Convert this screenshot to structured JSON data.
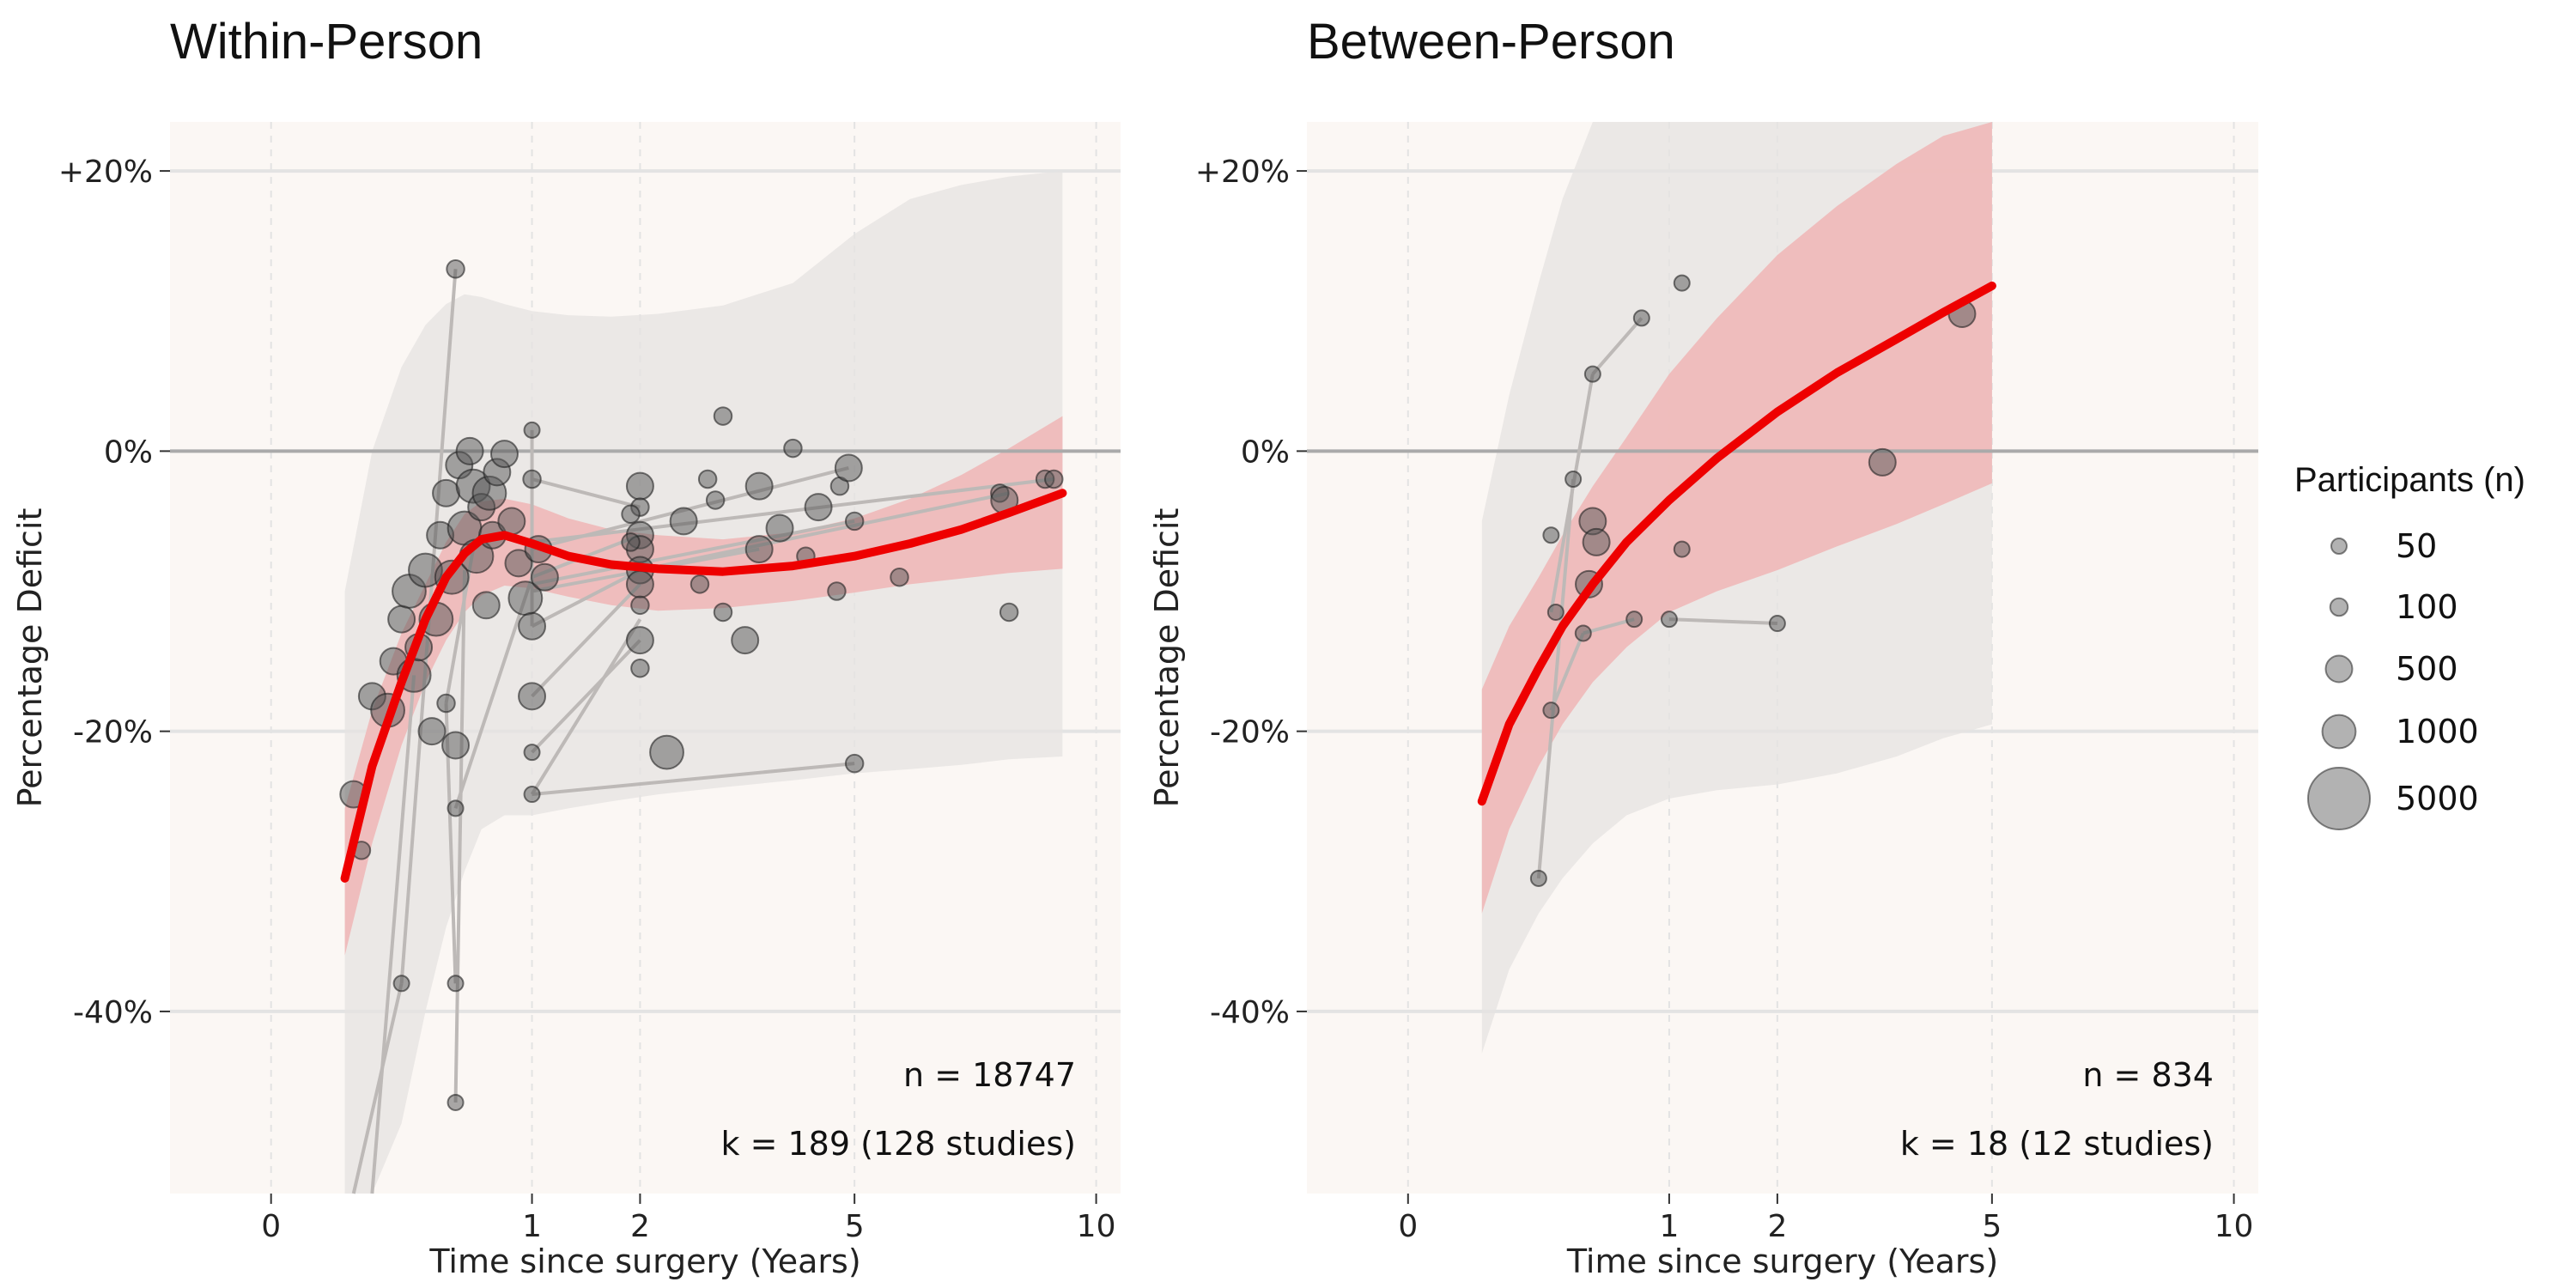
{
  "colors": {
    "panel_bg": "#fbf7f4",
    "outer_band": "#e6e3e1",
    "inner_band": "#f0b8b8",
    "curve": "#ee0000",
    "point_fill": "#555555",
    "link_line": "#bdb9b7",
    "zero_line": "#aaaaaa",
    "grid": "#e3e3e3"
  },
  "legend": {
    "title": "Participants (n)",
    "sizes": [
      50,
      100,
      500,
      1000,
      5000
    ],
    "labels": [
      "50",
      "100",
      "500",
      "1000",
      "5000"
    ]
  },
  "chart_data": [
    {
      "type": "scatter",
      "title": "Within-Person",
      "xlabel": "Time since surgery (Years)",
      "ylabel": "Percentage Deficit",
      "x_transform": "sqrt",
      "xlim": [
        -0.15,
        10.6
      ],
      "ylim": [
        -53,
        23.5
      ],
      "x_ticks": [
        0,
        1,
        2,
        5,
        10
      ],
      "y_ticks": [
        20,
        0,
        -20,
        -40
      ],
      "y_tick_labels": [
        "+20%",
        "0%",
        "-20%",
        "-40%"
      ],
      "annotations": [
        "n = 18747",
        "k = 189 (128 studies)"
      ],
      "fit": {
        "x": [
          0.08,
          0.15,
          0.25,
          0.35,
          0.45,
          0.55,
          0.65,
          0.8,
          1.0,
          1.3,
          1.7,
          2.2,
          3.0,
          4.0,
          5.0,
          6.0,
          7.0,
          8.0,
          9.2
        ],
        "y": [
          -30.5,
          -22.5,
          -16.5,
          -12.0,
          -9.0,
          -7.3,
          -6.3,
          -6.0,
          -6.6,
          -7.5,
          -8.1,
          -8.4,
          -8.6,
          -8.2,
          -7.5,
          -6.6,
          -5.6,
          -4.4,
          -3.0
        ],
        "ci_lower": [
          -36.0,
          -28.0,
          -21.0,
          -16.5,
          -13.5,
          -11.5,
          -10.3,
          -9.6,
          -9.8,
          -10.4,
          -11.0,
          -11.4,
          -11.2,
          -10.7,
          -10.1,
          -9.5,
          -9.1,
          -8.7,
          -8.4
        ],
        "ci_upper": [
          -25.5,
          -18.5,
          -13.0,
          -9.5,
          -6.5,
          -4.5,
          -3.6,
          -3.4,
          -3.8,
          -4.8,
          -5.6,
          -6.0,
          -6.3,
          -5.8,
          -4.8,
          -3.4,
          -1.7,
          0.2,
          2.5
        ],
        "pi_lower": [
          -60,
          -55,
          -48,
          -40,
          -34,
          -30,
          -27,
          -26,
          -26,
          -25.5,
          -25,
          -24.5,
          -24,
          -23.5,
          -23,
          -22.7,
          -22.4,
          -22.0,
          -21.8
        ],
        "pi_upper": [
          -10,
          0,
          6,
          9,
          10.5,
          11.2,
          11.0,
          10.5,
          10.0,
          9.7,
          9.6,
          9.8,
          10.4,
          12.0,
          15.5,
          18.0,
          19.0,
          19.6,
          20.0
        ]
      },
      "points": [
        {
          "x": 0.5,
          "y": 13,
          "n": 100
        },
        {
          "x": 0.15,
          "y": -17.5,
          "n": 500
        },
        {
          "x": 0.2,
          "y": -18.5,
          "n": 1000
        },
        {
          "x": 0.22,
          "y": -15,
          "n": 500
        },
        {
          "x": 0.25,
          "y": -12,
          "n": 500
        },
        {
          "x": 0.28,
          "y": -10,
          "n": 1000
        },
        {
          "x": 0.3,
          "y": -16,
          "n": 1000
        },
        {
          "x": 0.32,
          "y": -14,
          "n": 500
        },
        {
          "x": 0.35,
          "y": -8.5,
          "n": 1000
        },
        {
          "x": 0.38,
          "y": -20,
          "n": 500
        },
        {
          "x": 0.4,
          "y": -12,
          "n": 1000
        },
        {
          "x": 0.42,
          "y": -6,
          "n": 500
        },
        {
          "x": 0.45,
          "y": -3,
          "n": 500
        },
        {
          "x": 0.48,
          "y": -9,
          "n": 1000
        },
        {
          "x": 0.5,
          "y": -21,
          "n": 500
        },
        {
          "x": 0.52,
          "y": -1,
          "n": 500
        },
        {
          "x": 0.55,
          "y": -5.5,
          "n": 1000
        },
        {
          "x": 0.58,
          "y": 0,
          "n": 500
        },
        {
          "x": 0.6,
          "y": -2.5,
          "n": 1000
        },
        {
          "x": 0.62,
          "y": -7.5,
          "n": 1000
        },
        {
          "x": 0.65,
          "y": -4,
          "n": 500
        },
        {
          "x": 0.68,
          "y": -11,
          "n": 500
        },
        {
          "x": 0.7,
          "y": -3,
          "n": 1000
        },
        {
          "x": 0.72,
          "y": -6,
          "n": 500
        },
        {
          "x": 0.75,
          "y": -1.5,
          "n": 500
        },
        {
          "x": 0.8,
          "y": -0.2,
          "n": 500
        },
        {
          "x": 0.85,
          "y": -5,
          "n": 500
        },
        {
          "x": 0.9,
          "y": -8,
          "n": 500
        },
        {
          "x": 0.95,
          "y": -10.5,
          "n": 1000
        },
        {
          "x": 1.0,
          "y": -12.5,
          "n": 500
        },
        {
          "x": 1.0,
          "y": -2,
          "n": 100
        },
        {
          "x": 1.0,
          "y": 1.5,
          "n": 50
        },
        {
          "x": 1.0,
          "y": -17.5,
          "n": 500
        },
        {
          "x": 1.0,
          "y": -21.5,
          "n": 50
        },
        {
          "x": 1.0,
          "y": -24.5,
          "n": 50
        },
        {
          "x": 1.05,
          "y": -7,
          "n": 500
        },
        {
          "x": 1.1,
          "y": -9,
          "n": 500
        },
        {
          "x": 0.1,
          "y": -24.5,
          "n": 500
        },
        {
          "x": 0.12,
          "y": -28.5,
          "n": 100
        },
        {
          "x": 0.25,
          "y": -38,
          "n": 50
        },
        {
          "x": 0.5,
          "y": -38,
          "n": 50
        },
        {
          "x": 0.5,
          "y": -46.5,
          "n": 50
        },
        {
          "x": 0.5,
          "y": -25.5,
          "n": 50
        },
        {
          "x": 0.45,
          "y": -18,
          "n": 100
        },
        {
          "x": 2.0,
          "y": -2.5,
          "n": 500
        },
        {
          "x": 2.0,
          "y": -4,
          "n": 100
        },
        {
          "x": 2.0,
          "y": -6,
          "n": 500
        },
        {
          "x": 2.0,
          "y": -7,
          "n": 500
        },
        {
          "x": 2.0,
          "y": -8.5,
          "n": 500
        },
        {
          "x": 2.0,
          "y": -9.5,
          "n": 500
        },
        {
          "x": 2.0,
          "y": -11,
          "n": 100
        },
        {
          "x": 2.0,
          "y": -13.5,
          "n": 500
        },
        {
          "x": 2.0,
          "y": -15.5,
          "n": 100
        },
        {
          "x": 1.9,
          "y": -4.5,
          "n": 100
        },
        {
          "x": 1.9,
          "y": -6.5,
          "n": 100
        },
        {
          "x": 2.3,
          "y": -21.5,
          "n": 1000
        },
        {
          "x": 2.5,
          "y": -5,
          "n": 500
        },
        {
          "x": 2.7,
          "y": -9.5,
          "n": 100
        },
        {
          "x": 2.8,
          "y": -2,
          "n": 100
        },
        {
          "x": 2.9,
          "y": -3.5,
          "n": 100
        },
        {
          "x": 3.0,
          "y": 2.5,
          "n": 100
        },
        {
          "x": 3.0,
          "y": -11.5,
          "n": 100
        },
        {
          "x": 3.3,
          "y": -13.5,
          "n": 500
        },
        {
          "x": 3.5,
          "y": -2.5,
          "n": 500
        },
        {
          "x": 3.5,
          "y": -7,
          "n": 500
        },
        {
          "x": 3.8,
          "y": -5.5,
          "n": 500
        },
        {
          "x": 4.0,
          "y": 0.2,
          "n": 100
        },
        {
          "x": 4.2,
          "y": -7.5,
          "n": 100
        },
        {
          "x": 4.4,
          "y": -4,
          "n": 500
        },
        {
          "x": 4.7,
          "y": -10,
          "n": 100
        },
        {
          "x": 4.75,
          "y": -2.5,
          "n": 100
        },
        {
          "x": 4.9,
          "y": -1.2,
          "n": 500
        },
        {
          "x": 5.0,
          "y": -22.3,
          "n": 100
        },
        {
          "x": 5.0,
          "y": -5,
          "n": 100
        },
        {
          "x": 5.8,
          "y": -9,
          "n": 100
        },
        {
          "x": 7.8,
          "y": -3,
          "n": 100
        },
        {
          "x": 7.9,
          "y": -3.5,
          "n": 500
        },
        {
          "x": 8.0,
          "y": -11.5,
          "n": 100
        },
        {
          "x": 8.8,
          "y": -2,
          "n": 100
        },
        {
          "x": 9.0,
          "y": -2,
          "n": 100
        }
      ],
      "links": [
        [
          [
            0.25,
            -38
          ],
          [
            0.5,
            13
          ]
        ],
        [
          [
            0.5,
            -46.5
          ],
          [
            0.55,
            -8.5
          ]
        ],
        [
          [
            0.25,
            -38
          ],
          [
            0.1,
            -60
          ]
        ],
        [
          [
            0.5,
            -25.5
          ],
          [
            1.0,
            -9
          ]
        ],
        [
          [
            0.45,
            -18
          ],
          [
            0.6,
            -7
          ]
        ],
        [
          [
            1.0,
            -24.5
          ],
          [
            2.0,
            -12
          ]
        ],
        [
          [
            1.0,
            -21.5
          ],
          [
            2.0,
            -13.5
          ]
        ],
        [
          [
            1.0,
            -24.5
          ],
          [
            5.0,
            -22.3
          ]
        ],
        [
          [
            1.0,
            -17.5
          ],
          [
            2.0,
            -9.5
          ]
        ],
        [
          [
            1.0,
            -12.5
          ],
          [
            2.0,
            -8.5
          ]
        ],
        [
          [
            1.0,
            -9
          ],
          [
            2.0,
            -6
          ]
        ],
        [
          [
            1.0,
            -7
          ],
          [
            4.9,
            -1.2
          ]
        ],
        [
          [
            1.0,
            -6.5
          ],
          [
            9.0,
            -2
          ]
        ],
        [
          [
            1.0,
            -9.5
          ],
          [
            5.0,
            -5
          ]
        ],
        [
          [
            1.0,
            -10
          ],
          [
            3.5,
            -7
          ]
        ],
        [
          [
            1.0,
            -2
          ],
          [
            2.0,
            -4
          ]
        ],
        [
          [
            1.0,
            1.5
          ],
          [
            1.0,
            -12.5
          ]
        ],
        [
          [
            0.5,
            -38
          ],
          [
            0.45,
            -18
          ]
        ],
        [
          [
            0.15,
            -60
          ],
          [
            0.3,
            -16
          ]
        ],
        [
          [
            2.0,
            -8.5
          ],
          [
            8.0,
            -3
          ]
        ]
      ]
    },
    {
      "type": "scatter",
      "title": "Between-Person",
      "xlabel": "Time since surgery (Years)",
      "ylabel": "Percentage Deficit",
      "x_transform": "sqrt",
      "xlim": [
        -0.15,
        10.6
      ],
      "ylim": [
        -53,
        23.5
      ],
      "x_ticks": [
        0,
        1,
        2,
        5,
        10
      ],
      "y_ticks": [
        20,
        0,
        -20,
        -40
      ],
      "y_tick_labels": [
        "+20%",
        "0%",
        "-20%",
        "-40%"
      ],
      "annotations": [
        "n = 834",
        "k = 18 (12 studies)"
      ],
      "fit": {
        "x": [
          0.08,
          0.15,
          0.25,
          0.35,
          0.5,
          0.7,
          1.0,
          1.4,
          2.0,
          2.7,
          3.5,
          4.2,
          5.0
        ],
        "y": [
          -25,
          -19.5,
          -15.5,
          -12.5,
          -9.5,
          -6.5,
          -3.5,
          -0.5,
          2.8,
          5.6,
          8.0,
          9.9,
          11.8
        ],
        "ci_lower": [
          -33,
          -27,
          -22.5,
          -19.5,
          -16.5,
          -14.0,
          -11.5,
          -10.0,
          -8.5,
          -6.8,
          -5.2,
          -3.8,
          -2.3
        ],
        "ci_upper": [
          -17,
          -12.5,
          -9.0,
          -6.0,
          -2.5,
          1.0,
          5.5,
          9.5,
          14.0,
          17.5,
          20.5,
          22.5,
          24.5
        ],
        "pi_lower": [
          -43,
          -37,
          -33,
          -30.5,
          -28,
          -26,
          -24.8,
          -24.2,
          -23.8,
          -23,
          -21.8,
          -20.5,
          -19.5
        ],
        "pi_upper": [
          -5,
          4,
          12,
          18,
          24,
          30,
          36,
          40,
          42,
          44,
          45,
          46,
          47
        ]
      },
      "points": [
        {
          "x": 0.25,
          "y": -30.5,
          "n": 50
        },
        {
          "x": 0.3,
          "y": -18.5,
          "n": 50
        },
        {
          "x": 0.3,
          "y": -6,
          "n": 50
        },
        {
          "x": 0.32,
          "y": -11.5,
          "n": 50
        },
        {
          "x": 0.4,
          "y": -2,
          "n": 50
        },
        {
          "x": 0.45,
          "y": -13,
          "n": 50
        },
        {
          "x": 0.48,
          "y": -9.5,
          "n": 500
        },
        {
          "x": 0.5,
          "y": -5,
          "n": 500
        },
        {
          "x": 0.52,
          "y": -6.5,
          "n": 500
        },
        {
          "x": 0.5,
          "y": 5.5,
          "n": 50
        },
        {
          "x": 0.75,
          "y": -12,
          "n": 50
        },
        {
          "x": 0.8,
          "y": 9.5,
          "n": 50
        },
        {
          "x": 1.0,
          "y": -12,
          "n": 50
        },
        {
          "x": 1.1,
          "y": 12,
          "n": 50
        },
        {
          "x": 1.1,
          "y": -7,
          "n": 50
        },
        {
          "x": 2.0,
          "y": -12.3,
          "n": 50
        },
        {
          "x": 3.3,
          "y": -0.8,
          "n": 500
        },
        {
          "x": 4.5,
          "y": 9.8,
          "n": 500
        }
      ],
      "links": [
        [
          [
            0.25,
            -30.5
          ],
          [
            0.4,
            -2
          ]
        ],
        [
          [
            0.3,
            -18.5
          ],
          [
            0.45,
            -13
          ]
        ],
        [
          [
            0.45,
            -13
          ],
          [
            0.75,
            -12
          ]
        ],
        [
          [
            1.0,
            -12
          ],
          [
            2.0,
            -12.3
          ]
        ],
        [
          [
            0.5,
            5.5
          ],
          [
            0.8,
            9.5
          ]
        ],
        [
          [
            0.3,
            -11.5
          ],
          [
            0.5,
            5.5
          ]
        ]
      ]
    }
  ]
}
